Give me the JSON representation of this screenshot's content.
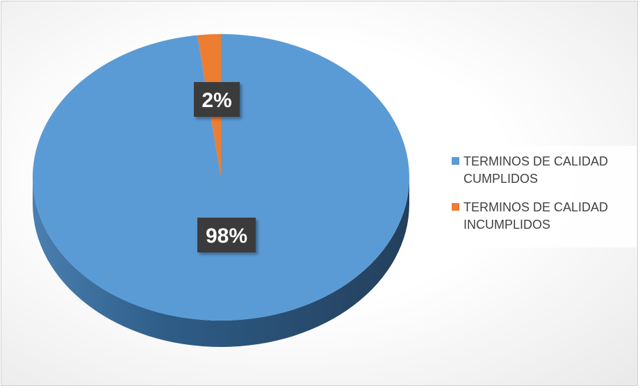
{
  "chart_data": {
    "type": "pie",
    "style": "3d",
    "title": "",
    "categories": [
      "TERMINOS DE CALIDAD CUMPLIDOS",
      "TERMINOS DE CALIDAD INCUMPLIDOS"
    ],
    "values": [
      98,
      2
    ],
    "data_labels": [
      "98%",
      "2%"
    ],
    "colors": [
      "#5b9bd5",
      "#ed7d31"
    ],
    "legend_position": "right"
  }
}
